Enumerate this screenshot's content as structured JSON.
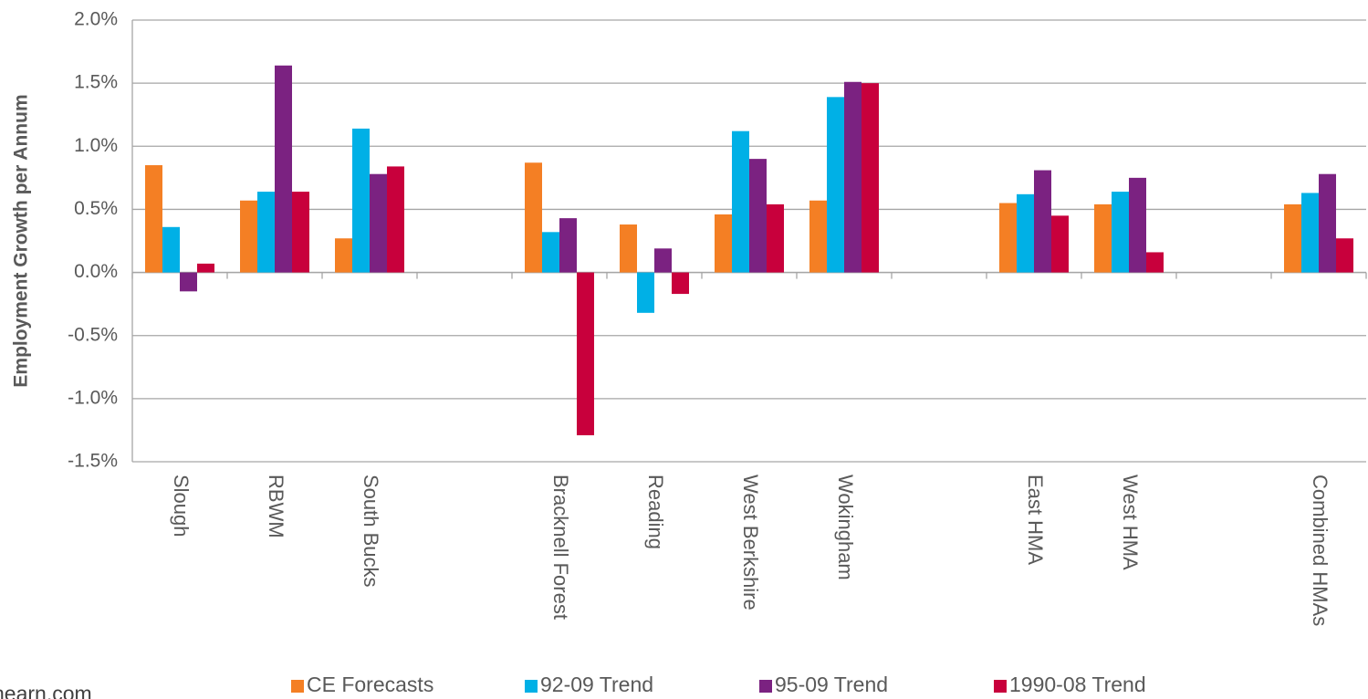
{
  "chart_data": {
    "type": "bar",
    "y_axis_label": "Employment Growth per Annum",
    "categories": [
      "Slough",
      "RBWM",
      "South Bucks",
      null,
      "Bracknell Forest",
      "Reading",
      "West Berkshire",
      "Wokingham",
      null,
      "East HMA",
      "West HMA",
      null,
      "Combined HMAs"
    ],
    "series": [
      {
        "name": "CE Forecasts",
        "color": "#f47f24",
        "values": [
          0.85,
          0.57,
          0.27,
          null,
          0.87,
          0.38,
          0.46,
          0.57,
          null,
          0.55,
          0.54,
          null,
          0.54
        ]
      },
      {
        "name": "92-09 Trend",
        "color": "#00b0e6",
        "values": [
          0.36,
          0.64,
          1.14,
          null,
          0.32,
          -0.32,
          1.12,
          1.39,
          null,
          0.62,
          0.64,
          null,
          0.63
        ]
      },
      {
        "name": "95-09 Trend",
        "color": "#7b2281",
        "values": [
          -0.15,
          1.64,
          0.78,
          null,
          0.43,
          0.19,
          0.9,
          1.51,
          null,
          0.81,
          0.75,
          null,
          0.78
        ]
      },
      {
        "name": "1990-08 Trend",
        "color": "#c8003c",
        "values": [
          0.07,
          0.64,
          0.84,
          null,
          -1.29,
          -0.17,
          0.54,
          1.5,
          null,
          0.45,
          0.16,
          null,
          0.27
        ]
      }
    ],
    "ylim": [
      -1.5,
      2.0
    ],
    "yticks": [
      {
        "value": -1.5,
        "label": "-1.5%"
      },
      {
        "value": -1.0,
        "label": "-1.0%"
      },
      {
        "value": -0.5,
        "label": "-0.5%"
      },
      {
        "value": 0,
        "label": "0.0%"
      },
      {
        "value": 0.5,
        "label": "0.5%"
      },
      {
        "value": 1.0,
        "label": "1.0%"
      },
      {
        "value": 1.5,
        "label": "1.5%"
      },
      {
        "value": 2.0,
        "label": "2.0%"
      }
    ],
    "grid": true,
    "legend": "bottom",
    "footer": "hearn.com"
  }
}
